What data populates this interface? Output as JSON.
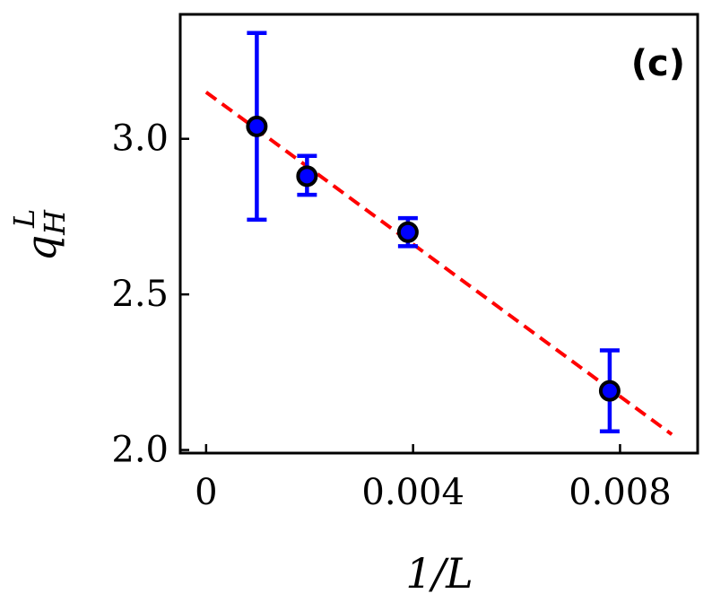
{
  "chart_data": {
    "type": "scatter",
    "panel_label": "(c)",
    "xlabel": "1/L",
    "ylabel": {
      "base": "q",
      "sub": "H",
      "sup": "L"
    },
    "xlim": [
      -0.0005,
      0.0095
    ],
    "ylim": [
      1.99,
      3.4
    ],
    "x_ticks": [
      {
        "value": 0,
        "label": "0"
      },
      {
        "value": 0.004,
        "label": "0.004"
      },
      {
        "value": 0.008,
        "label": "0.008"
      }
    ],
    "y_ticks": [
      {
        "value": 2.0,
        "label": "2.0"
      },
      {
        "value": 2.5,
        "label": "2.5"
      },
      {
        "value": 3.0,
        "label": "3.0"
      }
    ],
    "series": [
      {
        "points": [
          {
            "x": 0.00098,
            "y": 3.04,
            "err_low": 2.74,
            "err_high": 3.34
          },
          {
            "x": 0.00195,
            "y": 2.88,
            "err_low": 2.82,
            "err_high": 2.945
          },
          {
            "x": 0.0039,
            "y": 2.7,
            "err_low": 2.655,
            "err_high": 2.745
          },
          {
            "x": 0.0078,
            "y": 2.19,
            "err_low": 2.06,
            "err_high": 2.32
          }
        ],
        "marker_color": "#0000ff",
        "marker_edge": "#000000",
        "errorbar_color": "#0000ff"
      }
    ],
    "fit_line": {
      "x": [
        0,
        0.009
      ],
      "y": [
        3.15,
        2.05
      ],
      "color": "#ff0000",
      "style": "dashed"
    },
    "grid": false
  }
}
